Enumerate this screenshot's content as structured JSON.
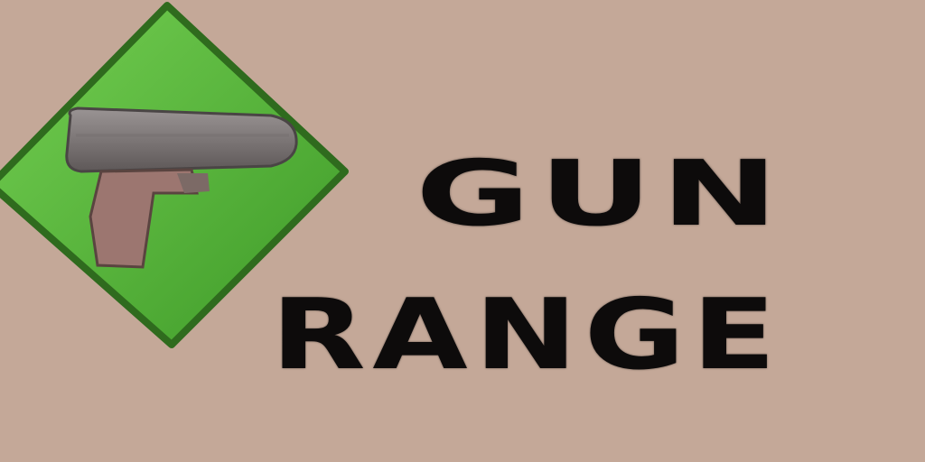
{
  "logo": {
    "line1": "GUN",
    "line2": "RANGE",
    "icon": "pistol-icon"
  },
  "colors": {
    "background": "#c4a898",
    "diamond": "#5ab53c",
    "diamond_border": "#2f6b1e",
    "text": "#0d0b0b"
  }
}
